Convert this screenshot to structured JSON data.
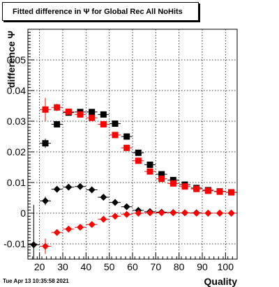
{
  "title": "Fitted difference in  Ψ  for Global Rec All NoHits",
  "datestamp": "Tue Apr 13 10:35:58 2021",
  "chart_data": {
    "type": "scatter",
    "title": "Fitted difference in  Ψ  for Global Rec All NoHits",
    "xlabel": "Quality",
    "ylabel": "difference Ψ",
    "xlim": [
      15,
      105
    ],
    "ylim": [
      -0.015,
      0.06
    ],
    "xticks": [
      20,
      30,
      40,
      50,
      60,
      70,
      80,
      90,
      100
    ],
    "yticks": [
      -0.01,
      0,
      0.01,
      0.02,
      0.03,
      0.04,
      0.05
    ],
    "ytick_labels": [
      "-0.01",
      "0",
      "0.01",
      "0.02",
      "0.03",
      "0.04",
      "0.05"
    ],
    "grid": true,
    "series": [
      {
        "color": "#000000",
        "marker": "square",
        "x": [
          22.5,
          27.5,
          32.5,
          37.5,
          42.5,
          47.5,
          52.5,
          57.5,
          62.5,
          67.5,
          72.5,
          77.5,
          82.5,
          87.5,
          92.5,
          97.5,
          102.5
        ],
        "y": [
          0.0228,
          0.029,
          0.0328,
          0.033,
          0.033,
          0.0322,
          0.0292,
          0.025,
          0.0197,
          0.0158,
          0.0127,
          0.0108,
          0.0093,
          0.0082,
          0.0075,
          0.0071,
          0.0068
        ],
        "yerr": [
          0.0015,
          0.0006,
          0.0005,
          0.0004,
          0.0004,
          0.0004,
          0.0004,
          0.0004,
          0.0003,
          0.0003,
          0.0003,
          0.0003,
          0.0003,
          0.0003,
          0.0003,
          0.0003,
          0.0003
        ]
      },
      {
        "color": "#ff0000",
        "marker": "square",
        "x": [
          22.5,
          27.5,
          32.5,
          37.5,
          42.5,
          47.5,
          52.5,
          57.5,
          62.5,
          67.5,
          72.5,
          77.5,
          82.5,
          87.5,
          92.5,
          97.5,
          102.5
        ],
        "y": [
          0.0338,
          0.0345,
          0.0331,
          0.0322,
          0.0311,
          0.029,
          0.0255,
          0.0213,
          0.0171,
          0.0136,
          0.0112,
          0.0097,
          0.0087,
          0.0079,
          0.0073,
          0.007,
          0.0068
        ],
        "yerr": [
          0.0038,
          0.0012,
          0.0007,
          0.0005,
          0.0005,
          0.0005,
          0.0004,
          0.0004,
          0.0003,
          0.0003,
          0.0003,
          0.0003,
          0.0003,
          0.0003,
          0.0003,
          0.0003,
          0.0003
        ]
      },
      {
        "color": "#000000",
        "marker": "diamond",
        "x": [
          17.5,
          22.5,
          27.5,
          32.5,
          37.5,
          42.5,
          47.5,
          52.5,
          57.5,
          62.5,
          67.5,
          72.5,
          77.5,
          82.5,
          87.5,
          92.5,
          97.5,
          102.5
        ],
        "y": [
          -0.0103,
          0.004,
          0.0078,
          0.0085,
          0.0087,
          0.0076,
          0.0052,
          0.0035,
          0.0021,
          0.0009,
          0.0005,
          0.0003,
          0.0002,
          0.0001,
          0.0001,
          0.0,
          0.0,
          0.0
        ],
        "yerr": [
          0.013,
          0.0014,
          0.0007,
          0.0005,
          0.0005,
          0.0004,
          0.0004,
          0.0003,
          0.0003,
          0.0003,
          0.0003,
          0.0002,
          0.0002,
          0.0002,
          0.0002,
          0.0002,
          0.0002,
          0.0002
        ]
      },
      {
        "color": "#ff0000",
        "marker": "diamond",
        "x": [
          22.5,
          27.5,
          32.5,
          37.5,
          42.5,
          47.5,
          52.5,
          57.5,
          62.5,
          67.5,
          72.5,
          77.5,
          82.5,
          87.5,
          92.5,
          97.5,
          102.5
        ],
        "y": [
          -0.0108,
          -0.0063,
          -0.0052,
          -0.0046,
          -0.0037,
          -0.002,
          -0.001,
          -0.0004,
          0.0,
          0.0001,
          0.0001,
          0.0001,
          0.0001,
          0.0,
          0.0,
          0.0,
          0.0
        ],
        "yerr": [
          0.0025,
          0.001,
          0.0006,
          0.0005,
          0.0005,
          0.0004,
          0.0004,
          0.0003,
          0.0003,
          0.0003,
          0.0003,
          0.0002,
          0.0002,
          0.0002,
          0.0002,
          0.0002,
          0.0002
        ]
      }
    ]
  }
}
